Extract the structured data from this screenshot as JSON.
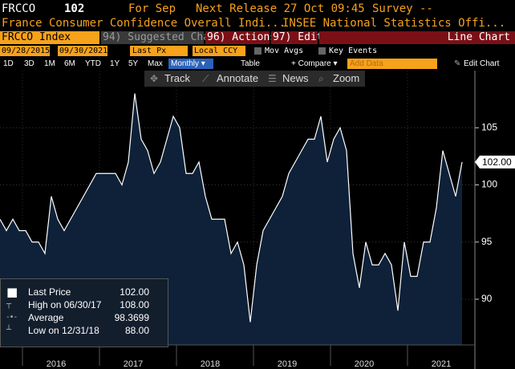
{
  "header": {
    "ticker": "FRCCO",
    "price": "102",
    "period": "For Sep",
    "next_release": "Next Release 27 Oct 09:45",
    "survey": "Survey --",
    "description": "France Consumer Confidence Overall Indi...",
    "source": "INSEE National Statistics Offi..."
  },
  "menu": {
    "security": "FRCCO Index",
    "suggested": "94) Suggested Charts",
    "actions": "96) Actions ▾",
    "edit": "97) Edit ▾",
    "chart_type": "Line Chart"
  },
  "settings": {
    "start_date": "09/28/2015",
    "end_date": "09/30/2021",
    "field": "Last Px",
    "currency": "Local CCY",
    "mov_avgs": "Mov Avgs",
    "key_events": "Key Events"
  },
  "toolbar": {
    "ranges": [
      "1D",
      "3D",
      "1M",
      "6M",
      "YTD",
      "1Y",
      "5Y",
      "Max"
    ],
    "frequency": "Monthly ▾",
    "table": "Table",
    "compare": "+ Compare ▾",
    "add_data": "Add Data",
    "edit_chart": "Edit Chart"
  },
  "tools": [
    "Track",
    "Annotate",
    "News",
    "Zoom"
  ],
  "chart_data": {
    "type": "area",
    "categories": [
      null,
      null,
      null,
      null,
      null,
      null,
      null,
      null,
      null,
      "2016",
      null,
      null,
      null,
      null,
      null,
      null,
      null,
      null,
      null,
      null,
      null,
      "2017",
      null,
      null,
      null,
      null,
      null,
      null,
      null,
      null,
      null,
      null,
      null,
      "2018",
      null,
      null,
      null,
      null,
      null,
      null,
      null,
      null,
      null,
      null,
      null,
      "2019",
      null,
      null,
      null,
      null,
      null,
      null,
      null,
      null,
      null,
      null,
      null,
      "2020",
      null,
      null,
      null,
      null,
      null,
      null,
      null,
      null,
      null,
      null,
      null,
      "2021",
      null,
      null,
      null
    ],
    "series": [
      {
        "name": "Last Price",
        "color": "#ffffff",
        "fill": "#0e2139",
        "values": [
          97,
          96,
          97,
          96,
          96,
          95,
          95,
          94,
          99,
          97,
          96,
          97,
          98,
          99,
          100,
          101,
          101,
          101,
          101,
          100,
          102,
          108,
          104,
          103,
          101,
          102,
          104,
          106,
          105,
          101,
          101,
          102,
          99,
          97,
          97,
          97,
          94,
          95,
          93,
          88,
          93,
          96,
          97,
          98,
          99,
          101,
          102,
          103,
          104,
          104,
          106,
          102,
          104,
          105,
          103,
          94,
          91,
          95,
          93,
          93,
          94,
          93,
          89,
          95,
          92,
          92,
          95,
          95,
          98,
          103,
          101,
          99,
          102
        ]
      }
    ],
    "last_value_label": "102.00",
    "ylim": [
      86,
      110
    ],
    "yticks": [
      90,
      95,
      100,
      105
    ],
    "grid": true,
    "legend_position": "bottom-left",
    "legend": [
      {
        "label": "Last Price",
        "value": "102.00"
      },
      {
        "label": "High on 06/30/17",
        "value": "108.00"
      },
      {
        "label": "Average",
        "value": "98.3699"
      },
      {
        "label": "Low on 12/31/18",
        "value": "88.00"
      }
    ]
  }
}
